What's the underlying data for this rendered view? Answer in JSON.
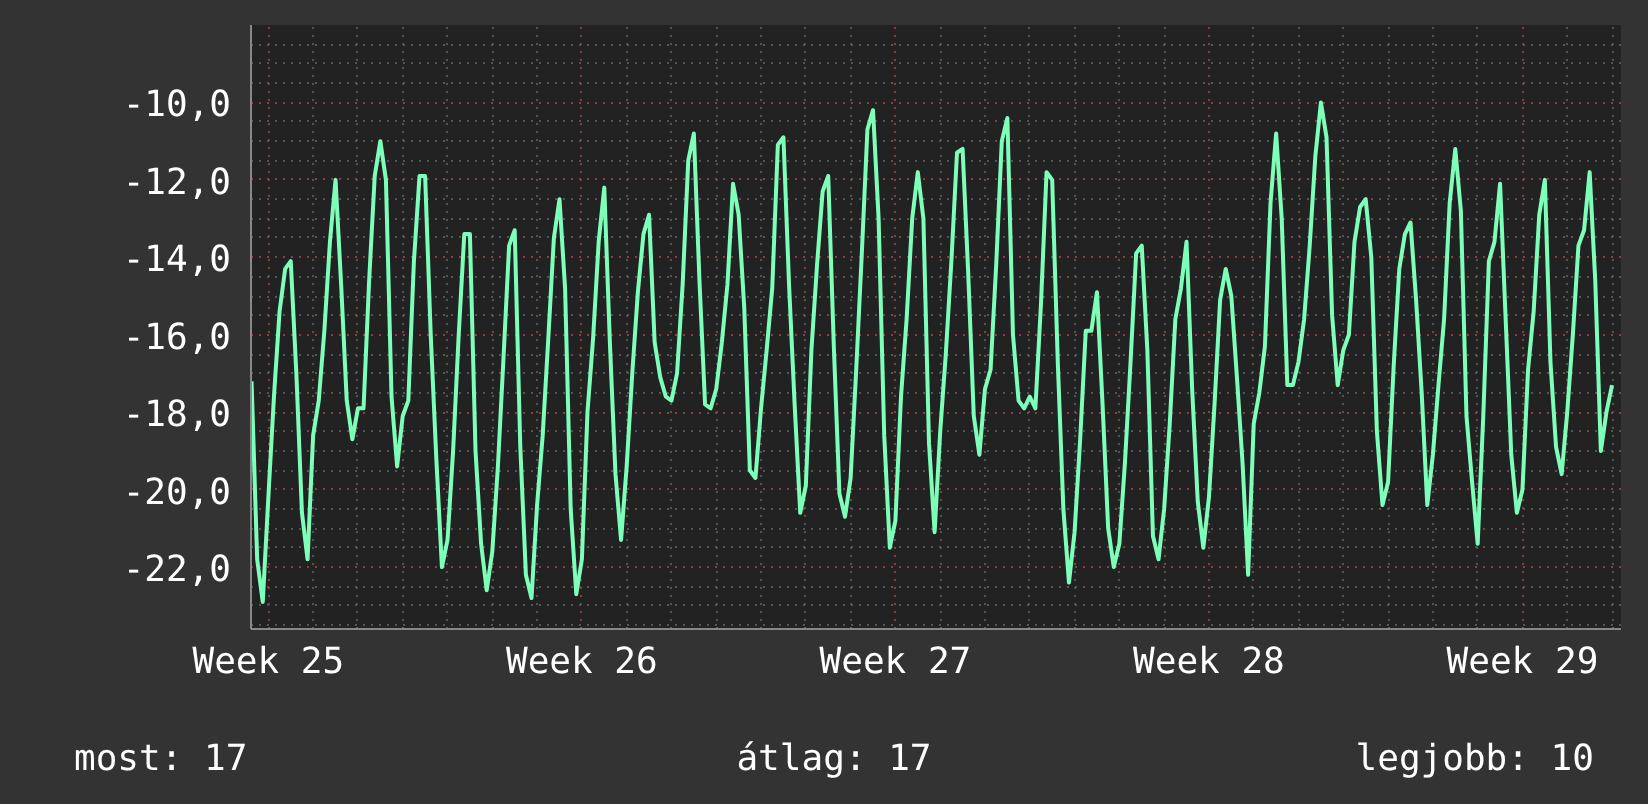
{
  "chart_data": {
    "type": "line",
    "categories": [
      null,
      null,
      null,
      "Week 25",
      null,
      null,
      null,
      null,
      null,
      null,
      null,
      null,
      null,
      null,
      null,
      null,
      null,
      null,
      null,
      null,
      null,
      null,
      null,
      null,
      null,
      null,
      null,
      null,
      null,
      null,
      null,
      null,
      null,
      null,
      null,
      null,
      null,
      null,
      null,
      null,
      null,
      null,
      null,
      null,
      null,
      null,
      null,
      null,
      null,
      null,
      null,
      null,
      null,
      null,
      null,
      null,
      null,
      null,
      null,
      "Week 26",
      null,
      null,
      null,
      null,
      null,
      null,
      null,
      null,
      null,
      null,
      null,
      null,
      null,
      null,
      null,
      null,
      null,
      null,
      null,
      null,
      null,
      null,
      null,
      null,
      null,
      null,
      null,
      null,
      null,
      null,
      null,
      null,
      null,
      null,
      null,
      null,
      null,
      null,
      null,
      null,
      null,
      null,
      null,
      null,
      null,
      null,
      null,
      null,
      null,
      null,
      null,
      null,
      null,
      null,
      null,
      "Week 27",
      null,
      null,
      null,
      null,
      null,
      null,
      null,
      null,
      null,
      null,
      null,
      null,
      null,
      null,
      null,
      null,
      null,
      null,
      null,
      null,
      null,
      null,
      null,
      null,
      null,
      null,
      null,
      null,
      null,
      null,
      null,
      null,
      null,
      null,
      null,
      null,
      null,
      null,
      null,
      null,
      null,
      null,
      null,
      null,
      null,
      null,
      null,
      null,
      null,
      null,
      null,
      null,
      null,
      null,
      null,
      "Week 28",
      null,
      null,
      null,
      null,
      null,
      null,
      null,
      null,
      null,
      null,
      null,
      null,
      null,
      null,
      null,
      null,
      null,
      null,
      null,
      null,
      null,
      null,
      null,
      null,
      null,
      null,
      null,
      null,
      null,
      null,
      null,
      null,
      null,
      null,
      null,
      null,
      null,
      null,
      null,
      null,
      null,
      null,
      null,
      null,
      null,
      null,
      null,
      null,
      null,
      null,
      null,
      null,
      null,
      null,
      null,
      "Week 29",
      null,
      null,
      null,
      null,
      null,
      null,
      null,
      null,
      null,
      null,
      null,
      null,
      null,
      null,
      null,
      null
    ],
    "series": [
      {
        "color": "#7dffb9",
        "values": [
          -17.2,
          -21.8,
          -22.9,
          -20.2,
          -17.6,
          -15.4,
          -14.3,
          -14.1,
          -17.0,
          -20.6,
          -21.8,
          -18.6,
          -17.7,
          -15.9,
          -13.6,
          -12.0,
          -14.7,
          -17.7,
          -18.7,
          -17.9,
          -17.9,
          -14.6,
          -11.9,
          -11.0,
          -12.0,
          -17.6,
          -19.4,
          -18.1,
          -17.7,
          -14.1,
          -11.9,
          -11.9,
          -16.0,
          -19.2,
          -22.0,
          -21.3,
          -19.0,
          -16.0,
          -13.4,
          -13.4,
          -19.0,
          -21.4,
          -22.6,
          -21.6,
          -19.4,
          -16.6,
          -13.7,
          -13.3,
          -18.9,
          -22.2,
          -22.8,
          -20.4,
          -18.6,
          -16.1,
          -13.5,
          -12.5,
          -14.8,
          -20.5,
          -22.7,
          -21.8,
          -18.0,
          -16.1,
          -13.6,
          -12.2,
          -16.2,
          -19.6,
          -21.3,
          -19.4,
          -17.0,
          -14.9,
          -13.4,
          -12.9,
          -16.2,
          -17.1,
          -17.6,
          -17.7,
          -17.0,
          -14.7,
          -11.5,
          -10.8,
          -14.6,
          -17.8,
          -17.9,
          -17.4,
          -16.2,
          -14.7,
          -12.1,
          -12.9,
          -15.3,
          -19.5,
          -19.7,
          -17.9,
          -16.4,
          -14.8,
          -11.1,
          -10.9,
          -14.7,
          -17.8,
          -20.6,
          -19.9,
          -16.4,
          -14.2,
          -12.3,
          -11.9,
          -16.3,
          -20.1,
          -20.7,
          -19.7,
          -16.9,
          -13.9,
          -10.7,
          -10.2,
          -13.0,
          -18.6,
          -21.5,
          -20.8,
          -17.6,
          -15.6,
          -13.0,
          -11.8,
          -13.0,
          -18.8,
          -21.1,
          -18.5,
          -16.5,
          -14.1,
          -11.3,
          -11.2,
          -14.4,
          -18.1,
          -19.1,
          -17.4,
          -16.9,
          -14.2,
          -11.0,
          -10.4,
          -16.0,
          -17.7,
          -17.9,
          -17.6,
          -17.9,
          -15.2,
          -11.8,
          -12.0,
          -16.7,
          -20.5,
          -22.4,
          -21.1,
          -18.7,
          -15.9,
          -15.9,
          -14.9,
          -17.8,
          -21.0,
          -22.0,
          -21.4,
          -19.3,
          -16.7,
          -13.9,
          -13.7,
          -16.4,
          -21.2,
          -21.8,
          -20.5,
          -18.3,
          -15.6,
          -14.8,
          -13.6,
          -17.4,
          -20.3,
          -21.5,
          -20.2,
          -17.8,
          -15.1,
          -14.3,
          -15.0,
          -17.1,
          -19.3,
          -22.2,
          -18.3,
          -17.5,
          -16.3,
          -12.6,
          -10.8,
          -13.0,
          -17.3,
          -17.3,
          -16.7,
          -15.6,
          -13.7,
          -11.4,
          -10.0,
          -10.9,
          -15.5,
          -17.3,
          -16.4,
          -16.0,
          -13.6,
          -12.7,
          -12.5,
          -14.0,
          -18.5,
          -20.4,
          -19.8,
          -16.8,
          -14.3,
          -13.4,
          -13.1,
          -15.1,
          -17.5,
          -20.4,
          -19.1,
          -17.3,
          -15.6,
          -12.6,
          -11.2,
          -12.8,
          -18.1,
          -19.8,
          -21.4,
          -18.1,
          -14.1,
          -13.6,
          -12.1,
          -15.6,
          -19.1,
          -20.6,
          -20.0,
          -16.9,
          -15.4,
          -12.9,
          -12.0,
          -16.7,
          -18.9,
          -19.6,
          -18.0,
          -16.0,
          -13.7,
          -13.3,
          -11.8,
          -14.6,
          -19.0,
          -18.0,
          -17.3
        ]
      }
    ],
    "ylim": [
      -23.6,
      -8.0
    ],
    "yticks": [
      {
        "value": -22,
        "label": "-22,0"
      },
      {
        "value": -20,
        "label": "-20,0"
      },
      {
        "value": -18,
        "label": "-18,0"
      },
      {
        "value": -16,
        "label": "-16,0"
      },
      {
        "value": -14,
        "label": "-14,0"
      },
      {
        "value": -12,
        "label": "-12,0"
      },
      {
        "value": -10,
        "label": "-10,0"
      }
    ],
    "grid": true,
    "line_style": "solid",
    "annotations": [
      "most: 17",
      "átlag: 17",
      "legjobb: 10"
    ]
  }
}
